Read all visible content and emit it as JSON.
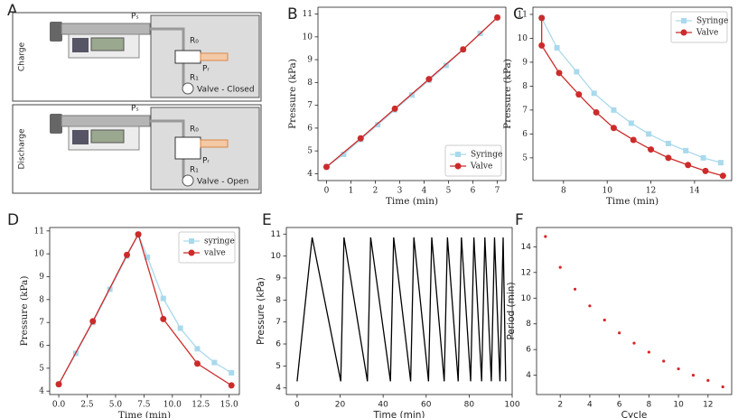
{
  "diagram": {
    "panel": "A",
    "rows": [
      {
        "label": "Charge",
        "source_pressure": "Pₛ",
        "reservoir_pressure": "Pᵣ",
        "r0": "R₀",
        "r1": "R₁",
        "valve_state": "Valve - Closed"
      },
      {
        "label": "Discharge",
        "source_pressure": "Pₛ",
        "reservoir_pressure": "Pᵣ",
        "r0": "R₀",
        "r1": "R₁",
        "valve_state": "Valve - Open"
      }
    ]
  },
  "chart_data": [
    {
      "panel": "B",
      "type": "line",
      "xlabel": "Time (min)",
      "ylabel": "Pressure (kPa)",
      "xlim": [
        -0.35,
        7.35
      ],
      "ylim": [
        3.7,
        11.3
      ],
      "xticks": [
        0,
        1,
        2,
        3,
        4,
        5,
        6,
        7
      ],
      "yticks": [
        4,
        5,
        6,
        7,
        8,
        9,
        10,
        11
      ],
      "legend": "lower right",
      "series": [
        {
          "name": "Syringe",
          "color": "#a9d9ec",
          "marker": "square",
          "x": [
            0,
            0.7,
            1.4,
            2.1,
            2.8,
            3.5,
            4.2,
            4.9,
            5.6,
            6.3,
            7.0
          ],
          "values": [
            4.3,
            4.85,
            5.5,
            6.15,
            6.8,
            7.45,
            8.1,
            8.75,
            9.45,
            10.15,
            10.85
          ]
        },
        {
          "name": "Valve",
          "color": "#cc2b2b",
          "marker": "circle",
          "x": [
            0,
            1.4,
            2.8,
            4.2,
            5.6,
            7.0
          ],
          "values": [
            4.3,
            5.55,
            6.85,
            8.15,
            9.45,
            10.85
          ]
        }
      ]
    },
    {
      "panel": "C",
      "type": "line",
      "xlabel": "Time (min)",
      "ylabel": "Pressure (kPa)",
      "xlim": [
        6.6,
        15.7
      ],
      "ylim": [
        4.05,
        11.3
      ],
      "xticks": [
        8,
        10,
        12,
        14
      ],
      "yticks": [
        5,
        6,
        7,
        8,
        9,
        10,
        11
      ],
      "legend": "upper right",
      "series": [
        {
          "name": "Syringe",
          "color": "#a9d9ec",
          "marker": "square",
          "x": [
            7.0,
            7.7,
            8.6,
            9.4,
            10.3,
            11.1,
            11.9,
            12.8,
            13.6,
            14.4,
            15.2
          ],
          "values": [
            10.85,
            9.6,
            8.6,
            7.7,
            7.0,
            6.45,
            6.0,
            5.6,
            5.3,
            5.0,
            4.8
          ]
        },
        {
          "name": "Valve",
          "color": "#cc2b2b",
          "marker": "circle",
          "x": [
            7.0,
            7.0,
            7.8,
            8.7,
            9.5,
            10.3,
            11.2,
            12.0,
            12.8,
            13.7,
            14.5,
            15.3
          ],
          "values": [
            10.85,
            9.7,
            8.55,
            7.65,
            6.9,
            6.25,
            5.75,
            5.35,
            5.0,
            4.7,
            4.45,
            4.25
          ]
        }
      ]
    },
    {
      "panel": "D",
      "type": "line",
      "xlabel": "Time (min)",
      "ylabel": "Pressure (kPa)",
      "xlim": [
        -0.8,
        15.9
      ],
      "ylim": [
        3.85,
        11.15
      ],
      "xticks": [
        {
          "value": 0,
          "label": "0.0"
        },
        {
          "value": 2.5,
          "label": "2.5"
        },
        {
          "value": 5,
          "label": "5.0"
        },
        {
          "value": 7.5,
          "label": "7.5"
        },
        {
          "value": 10,
          "label": "10.0"
        },
        {
          "value": 12.5,
          "label": "12.5"
        },
        {
          "value": 15,
          "label": "15.0"
        }
      ],
      "yticks": [
        4,
        5,
        6,
        7,
        8,
        9,
        10,
        11
      ],
      "legend": "upper right",
      "series": [
        {
          "name": "syringe",
          "color": "#a9d9ec",
          "marker": "square",
          "x": [
            0,
            1.5,
            3.0,
            4.5,
            6.0,
            7.0,
            7.8,
            9.2,
            10.7,
            12.2,
            13.7,
            15.2
          ],
          "values": [
            4.3,
            5.65,
            7.0,
            8.45,
            9.9,
            10.85,
            9.85,
            8.05,
            6.75,
            5.85,
            5.25,
            4.8
          ]
        },
        {
          "name": "valve",
          "color": "#cc2b2b",
          "marker": "circle",
          "x": [
            0,
            3.0,
            6.0,
            7.0,
            9.2,
            12.2,
            15.2
          ],
          "values": [
            4.3,
            7.05,
            9.95,
            10.85,
            7.15,
            5.2,
            4.25
          ]
        }
      ]
    },
    {
      "panel": "E",
      "type": "line",
      "xlabel": "Time (min)",
      "ylabel": "Pressure (kPa)",
      "xlim": [
        -5,
        100
      ],
      "ylim": [
        3.7,
        11.3
      ],
      "xticks": [
        0,
        20,
        40,
        60,
        80,
        100
      ],
      "yticks": [
        4,
        5,
        6,
        7,
        8,
        9,
        10,
        11
      ],
      "series": [
        {
          "color": "#000000",
          "x": [
            0,
            7,
            20.3,
            21.8,
            32.7,
            34.2,
            43.4,
            44.9,
            52.8,
            54.3,
            61.1,
            62.6,
            68.4,
            69.9,
            74.9,
            76.4,
            80.7,
            82.2,
            85.8,
            87.3,
            90.3,
            91.8,
            94.3,
            95.8,
            97
          ],
          "values": [
            4.3,
            10.85,
            4.3,
            10.85,
            4.3,
            10.85,
            4.3,
            10.85,
            4.3,
            10.85,
            4.3,
            10.85,
            4.3,
            10.85,
            4.3,
            10.85,
            4.3,
            10.85,
            4.3,
            10.85,
            4.3,
            10.85,
            4.3,
            10.85,
            4.3
          ]
        }
      ]
    },
    {
      "panel": "F",
      "type": "scatter",
      "xlabel": "Cycle",
      "ylabel": "Period (min)",
      "xlim": [
        0.4,
        13.6
      ],
      "ylim": [
        2.5,
        15.5
      ],
      "xticks": [
        2,
        4,
        6,
        8,
        10,
        12
      ],
      "yticks": [
        4,
        6,
        8,
        10,
        12,
        14
      ],
      "color": "#d62728",
      "x": [
        1,
        2,
        3,
        4,
        5,
        6,
        7,
        8,
        9,
        10,
        11,
        12,
        13
      ],
      "values": [
        14.8,
        12.4,
        10.7,
        9.4,
        8.3,
        7.3,
        6.5,
        5.8,
        5.1,
        4.5,
        4.0,
        3.6,
        3.1
      ]
    }
  ]
}
